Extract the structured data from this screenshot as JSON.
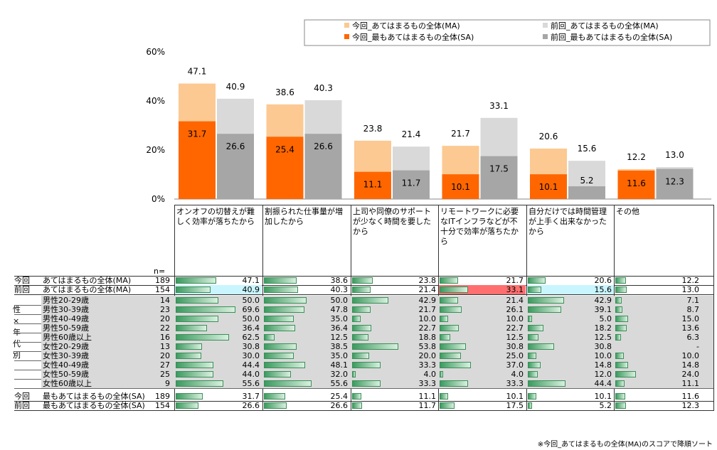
{
  "chart_data": {
    "type": "bar",
    "yaxis_ticks": [
      "0%",
      "20%",
      "40%",
      "60%"
    ],
    "ylim": [
      0,
      60
    ],
    "categories": [
      "オンオフの切替えが難しく効率が落ちたから",
      "割振られた仕事量が増加したから",
      "上司や同僚のサポートが少なく時間を要したから",
      "リモートワークに必要なITインフラなどが不十分で効率が落ちたから",
      "自分だけでは時間管理が上手く出来なかったから",
      "その他"
    ],
    "series": [
      {
        "name": "今回_あてはまるもの全体(MA)",
        "color": "#fcc992",
        "values": [
          47.1,
          38.6,
          23.8,
          21.7,
          20.6,
          12.2
        ]
      },
      {
        "name": "今回_最もあてはまるもの全体(SA)",
        "color": "#ff6600",
        "values": [
          31.7,
          25.4,
          11.1,
          10.1,
          10.1,
          11.6
        ]
      },
      {
        "name": "前回_あてはまるもの全体(MA)",
        "color": "#d9d9d9",
        "values": [
          40.9,
          40.3,
          21.4,
          33.1,
          15.6,
          13.0
        ]
      },
      {
        "name": "前回_最もあてはまるもの全体(SA)",
        "color": "#a6a6a6",
        "values": [
          26.6,
          26.6,
          11.7,
          17.5,
          5.2,
          12.3
        ]
      }
    ]
  },
  "table": {
    "n_header": "n=",
    "side_label": [
      "性",
      "×",
      "年",
      "代",
      "別"
    ],
    "rows": [
      {
        "prefix": "今回",
        "label": "あてはまるもの全体(MA)",
        "n": "189",
        "values": [
          "47.1",
          "38.6",
          "23.8",
          "21.7",
          "20.6",
          "12.2"
        ],
        "group": "top"
      },
      {
        "prefix": "前回",
        "label": "あてはまるもの全体(MA)",
        "n": "154",
        "values": [
          "40.9",
          "40.3",
          "21.4",
          "33.1",
          "15.6",
          "13.0"
        ],
        "group": "top"
      },
      {
        "prefix": "",
        "label": "男性20-29歳",
        "n": "14",
        "values": [
          "50.0",
          "50.0",
          "42.9",
          "21.4",
          "42.9",
          "7.1"
        ],
        "group": "seg"
      },
      {
        "prefix": "",
        "label": "男性30-39歳",
        "n": "23",
        "values": [
          "69.6",
          "47.8",
          "21.7",
          "26.1",
          "39.1",
          "8.7"
        ],
        "group": "seg"
      },
      {
        "prefix": "",
        "label": "男性40-49歳",
        "n": "20",
        "values": [
          "50.0",
          "35.0",
          "10.0",
          "10.0",
          "5.0",
          "15.0"
        ],
        "group": "seg"
      },
      {
        "prefix": "",
        "label": "男性50-59歳",
        "n": "22",
        "values": [
          "36.4",
          "36.4",
          "22.7",
          "22.7",
          "18.2",
          "13.6"
        ],
        "group": "seg"
      },
      {
        "prefix": "",
        "label": "男性60歳以上",
        "n": "16",
        "values": [
          "62.5",
          "12.5",
          "18.8",
          "12.5",
          "12.5",
          "6.3"
        ],
        "group": "seg"
      },
      {
        "prefix": "",
        "label": "女性20-29歳",
        "n": "13",
        "values": [
          "30.8",
          "38.5",
          "53.8",
          "30.8",
          "30.8",
          "-"
        ],
        "group": "seg"
      },
      {
        "prefix": "",
        "label": "女性30-39歳",
        "n": "20",
        "values": [
          "30.0",
          "35.0",
          "20.0",
          "25.0",
          "10.0",
          "10.0"
        ],
        "group": "seg"
      },
      {
        "prefix": "",
        "label": "女性40-49歳",
        "n": "27",
        "values": [
          "44.4",
          "48.1",
          "33.3",
          "37.0",
          "14.8",
          "14.8"
        ],
        "group": "seg"
      },
      {
        "prefix": "",
        "label": "女性50-59歳",
        "n": "25",
        "values": [
          "44.0",
          "32.0",
          "4.0",
          "4.0",
          "12.0",
          "24.0"
        ],
        "group": "seg"
      },
      {
        "prefix": "",
        "label": "女性60歳以上",
        "n": "9",
        "values": [
          "55.6",
          "55.6",
          "33.3",
          "33.3",
          "44.4",
          "11.1"
        ],
        "group": "seg"
      },
      {
        "prefix": "今回",
        "label": "最もあてはまるもの全体(SA)",
        "n": "189",
        "values": [
          "31.7",
          "25.4",
          "11.1",
          "10.1",
          "10.1",
          "11.6"
        ],
        "group": "bottom"
      },
      {
        "prefix": "前回",
        "label": "最もあてはまるもの全体(SA)",
        "n": "154",
        "values": [
          "26.6",
          "26.6",
          "11.7",
          "17.5",
          "5.2",
          "12.3"
        ],
        "group": "bottom"
      }
    ],
    "highlights": {
      "1-0": "blue",
      "1-3": "red",
      "1-4": "blue"
    }
  },
  "footnote": "※今回_あてはまるもの全体(MA)のスコアで降順ソート"
}
